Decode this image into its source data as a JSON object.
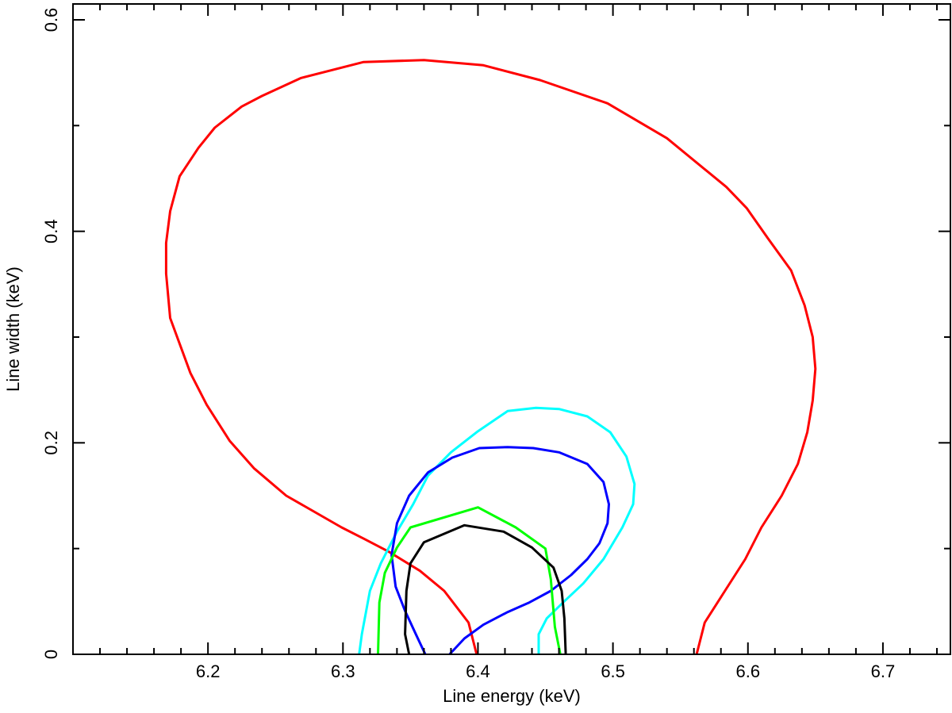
{
  "chart_data": {
    "type": "line",
    "xlabel": "Line energy (keV)",
    "ylabel": "Line width (keV)",
    "xlim": [
      6.1,
      6.75
    ],
    "ylim": [
      0,
      0.615
    ],
    "xticks": [
      6.2,
      6.3,
      6.4,
      6.5,
      6.6,
      6.7
    ],
    "xminorticks": [
      6.12,
      6.14,
      6.16,
      6.18,
      6.22,
      6.24,
      6.26,
      6.28,
      6.32,
      6.34,
      6.36,
      6.38,
      6.42,
      6.44,
      6.46,
      6.48,
      6.52,
      6.54,
      6.56,
      6.58,
      6.62,
      6.64,
      6.66,
      6.68,
      6.72,
      6.74
    ],
    "yticks": [
      0,
      0.2,
      0.4,
      0.6
    ],
    "yminorticks": [
      0.1,
      0.3,
      0.5
    ],
    "series": [
      {
        "color": "#ff0000",
        "x": [
          6.399,
          6.393,
          6.375,
          6.357,
          6.334,
          6.316,
          6.299,
          6.258,
          6.234,
          6.216,
          6.199,
          6.187,
          6.172,
          6.169,
          6.169,
          6.172,
          6.179,
          6.193,
          6.205,
          6.216,
          6.225,
          6.24,
          6.269,
          6.315,
          6.36,
          6.404,
          6.446,
          6.496,
          6.54,
          6.584,
          6.599,
          6.615,
          6.632,
          6.642,
          6.648,
          6.65,
          6.648,
          6.644,
          6.637,
          6.625,
          6.61,
          6.598,
          6.583,
          6.568,
          6.562
        ],
        "values": [
          0,
          0.03,
          0.06,
          0.079,
          0.097,
          0.109,
          0.12,
          0.15,
          0.176,
          0.202,
          0.236,
          0.266,
          0.318,
          0.36,
          0.389,
          0.419,
          0.452,
          0.479,
          0.498,
          0.509,
          0.518,
          0.528,
          0.545,
          0.56,
          0.562,
          0.557,
          0.543,
          0.521,
          0.488,
          0.442,
          0.422,
          0.393,
          0.363,
          0.33,
          0.3,
          0.27,
          0.24,
          0.21,
          0.18,
          0.15,
          0.12,
          0.09,
          0.06,
          0.03,
          0
        ]
      },
      {
        "color": "#00ffff",
        "x": [
          6.312,
          6.314,
          6.32,
          6.328,
          6.34,
          6.352,
          6.363,
          6.38,
          6.4,
          6.422,
          6.443,
          6.46,
          6.481,
          6.498,
          6.51,
          6.516,
          6.515,
          6.507,
          6.493,
          6.478,
          6.463,
          6.451,
          6.445,
          6.445
        ],
        "values": [
          0,
          0.019,
          0.06,
          0.086,
          0.116,
          0.142,
          0.169,
          0.191,
          0.211,
          0.23,
          0.233,
          0.232,
          0.225,
          0.21,
          0.187,
          0.161,
          0.142,
          0.12,
          0.09,
          0.067,
          0.049,
          0.034,
          0.019,
          0
        ]
      },
      {
        "color": "#0000ff",
        "x": [
          6.361,
          6.354,
          6.346,
          6.339,
          6.336,
          6.34,
          6.349,
          6.363,
          6.381,
          6.401,
          6.422,
          6.441,
          6.46,
          6.481,
          6.493,
          6.497,
          6.496,
          6.49,
          6.481,
          6.469,
          6.454,
          6.438,
          6.422,
          6.404,
          6.39,
          6.379
        ],
        "values": [
          0,
          0.019,
          0.041,
          0.064,
          0.094,
          0.124,
          0.15,
          0.172,
          0.186,
          0.195,
          0.196,
          0.195,
          0.191,
          0.18,
          0.163,
          0.142,
          0.124,
          0.105,
          0.09,
          0.075,
          0.06,
          0.049,
          0.04,
          0.028,
          0.015,
          0
        ]
      },
      {
        "color": "#00ff00",
        "x": [
          6.326,
          6.327,
          6.331,
          6.34,
          6.35,
          6.4,
          6.428,
          6.45,
          6.454,
          6.457,
          6.461
        ],
        "values": [
          0,
          0.049,
          0.077,
          0.101,
          0.12,
          0.139,
          0.12,
          0.1,
          0.071,
          0.026,
          0
        ]
      },
      {
        "color": "#000000",
        "x": [
          6.349,
          6.346,
          6.347,
          6.35,
          6.36,
          6.39,
          6.419,
          6.44,
          6.456,
          6.462,
          6.464,
          6.465
        ],
        "values": [
          0,
          0.019,
          0.06,
          0.086,
          0.106,
          0.122,
          0.116,
          0.101,
          0.082,
          0.06,
          0.034,
          0
        ]
      }
    ]
  }
}
